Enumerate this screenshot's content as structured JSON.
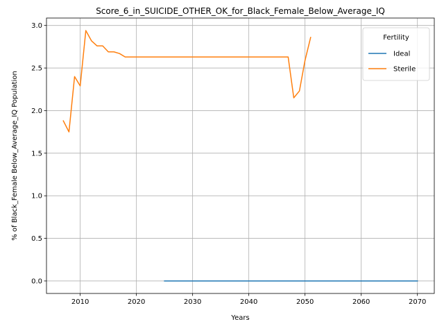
{
  "chart_data": {
    "type": "line",
    "title": "Score_6_in_SUICIDE_OTHER_OK_for_Black_Female_Below_Average_IQ",
    "xlabel": "Years",
    "ylabel": "% of Black_Female Below_Average_IQ Population",
    "xlim": [
      2004.0,
      2073.0
    ],
    "ylim": [
      -0.147,
      3.087
    ],
    "x_ticks": [
      2010,
      2020,
      2030,
      2040,
      2050,
      2060,
      2070
    ],
    "y_ticks": [
      0.0,
      0.5,
      1.0,
      1.5,
      2.0,
      2.5,
      3.0
    ],
    "y_tick_labels": [
      "0.0",
      "0.5",
      "1.0",
      "1.5",
      "2.0",
      "2.5",
      "3.0"
    ],
    "grid": true,
    "legend": {
      "title": "Fertility",
      "placement": "top-right"
    },
    "series": [
      {
        "name": "Ideal",
        "color": "#1f77b4",
        "x": [
          2025,
          2070
        ],
        "y": [
          0.0,
          0.0
        ]
      },
      {
        "name": "Sterile",
        "color": "#ff7f0e",
        "x": [
          2007,
          2008,
          2009,
          2010,
          2011,
          2012,
          2013,
          2014,
          2015,
          2016,
          2017,
          2018,
          2019,
          2020,
          2025,
          2030,
          2035,
          2040,
          2045,
          2046,
          2047,
          2048,
          2049,
          2050,
          2051
        ],
        "y": [
          1.88,
          1.75,
          2.4,
          2.29,
          2.94,
          2.82,
          2.76,
          2.76,
          2.69,
          2.69,
          2.67,
          2.63,
          2.63,
          2.63,
          2.63,
          2.63,
          2.63,
          2.63,
          2.63,
          2.63,
          2.63,
          2.15,
          2.23,
          2.59,
          2.86
        ]
      }
    ]
  }
}
